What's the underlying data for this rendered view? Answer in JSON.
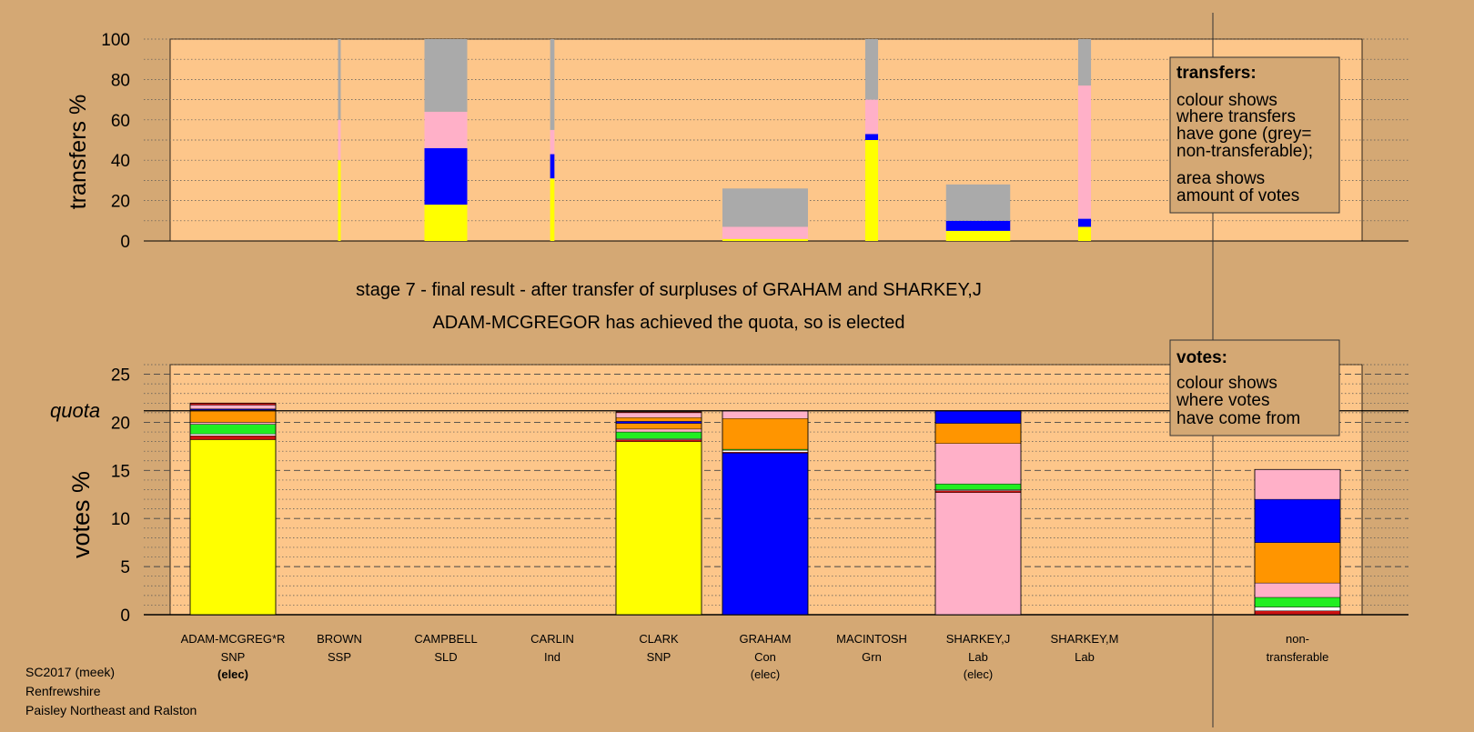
{
  "colors": {
    "background": "#d4a874",
    "panel": "#fdc68a",
    "SNP": "#ffff00",
    "Con": "#0000ff",
    "Lab": "#ffb0c8",
    "SLD": "#ff9500",
    "Grn": "#22ee22",
    "SSP": "#cc1111",
    "Ind": "#ffffff",
    "nontransferable": "#aaaaaa",
    "black": "#000000"
  },
  "captions": {
    "stage": "stage 7 - final result - after transfer of surpluses of GRAHAM and SHARKEY,J",
    "elected": "ADAM-MCGREGOR has achieved the quota, so is elected"
  },
  "legend_transfers": {
    "title": "transfers:",
    "lines": [
      "colour shows",
      "where transfers",
      "have gone (grey=",
      "non-transferable);",
      "area shows",
      "amount of votes"
    ]
  },
  "legend_votes": {
    "title": "votes:",
    "lines": [
      "colour shows",
      "where votes",
      "have come from"
    ]
  },
  "candidates": [
    {
      "name": "ADAM-MCGREG*R",
      "party": "SNP",
      "status": "(elec)",
      "status_bold": true
    },
    {
      "name": "BROWN",
      "party": "SSP",
      "status": ""
    },
    {
      "name": "CAMPBELL",
      "party": "SLD",
      "status": ""
    },
    {
      "name": "CARLIN",
      "party": "Ind",
      "status": ""
    },
    {
      "name": "CLARK",
      "party": "SNP",
      "status": ""
    },
    {
      "name": "GRAHAM",
      "party": "Con",
      "status": "(elec)"
    },
    {
      "name": "MACINTOSH",
      "party": "Grn",
      "status": ""
    },
    {
      "name": "SHARKEY,J",
      "party": "Lab",
      "status": "(elec)"
    },
    {
      "name": "SHARKEY,M",
      "party": "Lab",
      "status": ""
    }
  ],
  "nontransferable_label": [
    "non-",
    "transferable"
  ],
  "footer": [
    "SC2017 (meek)",
    "Renfrewshire",
    "Paisley Northeast and Ralston"
  ],
  "chart_data": [
    {
      "type": "bar",
      "stacked": true,
      "ylabel": "transfers %",
      "ylim": [
        0,
        100
      ],
      "yticks": [
        0,
        20,
        40,
        60,
        80,
        100
      ],
      "grid": true,
      "categories": [
        "BROWN",
        "CAMPBELL",
        "CARLIN",
        "MACINTOSH",
        "SHARKEY,M",
        "GRAHAM",
        "SHARKEY,J"
      ],
      "relative_width": [
        0.05,
        1,
        0.1,
        0.3,
        0.3,
        2,
        1.5
      ],
      "segments": [
        [
          [
            "SNP",
            40
          ],
          [
            "Lab",
            20
          ],
          [
            "nontransferable",
            40
          ]
        ],
        [
          [
            "SNP",
            18
          ],
          [
            "Con",
            28
          ],
          [
            "Lab",
            18
          ],
          [
            "nontransferable",
            36
          ]
        ],
        [
          [
            "SNP",
            31
          ],
          [
            "Con",
            12
          ],
          [
            "Lab",
            12
          ],
          [
            "nontransferable",
            45
          ]
        ],
        [
          [
            "SNP",
            50
          ],
          [
            "Con",
            3
          ],
          [
            "Lab",
            17
          ],
          [
            "nontransferable",
            30
          ]
        ],
        [
          [
            "SNP",
            7
          ],
          [
            "Con",
            4
          ],
          [
            "Lab",
            66
          ],
          [
            "nontransferable",
            23
          ]
        ],
        [
          [
            "SNP",
            1
          ],
          [
            "Lab",
            6
          ],
          [
            "nontransferable",
            19
          ]
        ],
        [
          [
            "SNP",
            5
          ],
          [
            "Con",
            5
          ],
          [
            "nontransferable",
            18
          ]
        ]
      ]
    },
    {
      "type": "bar",
      "stacked": true,
      "ylabel": "votes %",
      "ylim": [
        0,
        26
      ],
      "yticks": [
        0,
        5,
        10,
        15,
        20,
        25
      ],
      "quota": 21.2,
      "quota_label": "quota",
      "grid": true,
      "categories": [
        "ADAM-MCGREG*R",
        "BROWN",
        "CAMPBELL",
        "CARLIN",
        "CLARK",
        "GRAHAM",
        "MACINTOSH",
        "SHARKEY,J",
        "SHARKEY,M",
        "non-transferable"
      ],
      "segments": [
        [
          [
            "SNP",
            18.2
          ],
          [
            "SSP",
            0.4
          ],
          [
            "Ind",
            0.2
          ],
          [
            "Grn",
            1.0
          ],
          [
            "Lab",
            0.2
          ],
          [
            "SLD",
            1.3
          ],
          [
            "Con",
            0.1
          ],
          [
            "Lab",
            0.4
          ],
          [
            "SSP",
            0.2
          ]
        ],
        [],
        [],
        [],
        [
          [
            "SNP",
            18.0
          ],
          [
            "SSP",
            0.2
          ],
          [
            "Ind",
            0.1
          ],
          [
            "Grn",
            0.7
          ],
          [
            "Lab",
            0.3
          ],
          [
            "SLD",
            0.6
          ],
          [
            "Con",
            0.2
          ],
          [
            "SLD",
            0.4
          ],
          [
            "Lab",
            0.5
          ],
          [
            "SSP",
            0.1
          ]
        ],
        [
          [
            "Con",
            16.8
          ],
          [
            "SSP",
            0.1
          ],
          [
            "Ind",
            0.2
          ],
          [
            "Grn",
            0.1
          ],
          [
            "SLD",
            3.2
          ],
          [
            "Lab",
            0.8
          ]
        ],
        [],
        [
          [
            "Lab",
            12.7
          ],
          [
            "SSP",
            0.2
          ],
          [
            "Ind",
            0.1
          ],
          [
            "Grn",
            0.6
          ],
          [
            "Lab",
            4.2
          ],
          [
            "SLD",
            2.1
          ],
          [
            "Con",
            1.3
          ]
        ],
        [],
        [
          [
            "SSP",
            0.4
          ],
          [
            "Ind",
            0.4
          ],
          [
            "Grn",
            1.0
          ],
          [
            "Lab",
            1.5
          ],
          [
            "SLD",
            4.2
          ],
          [
            "Con",
            4.5
          ],
          [
            "Lab",
            3.1
          ]
        ]
      ]
    }
  ]
}
